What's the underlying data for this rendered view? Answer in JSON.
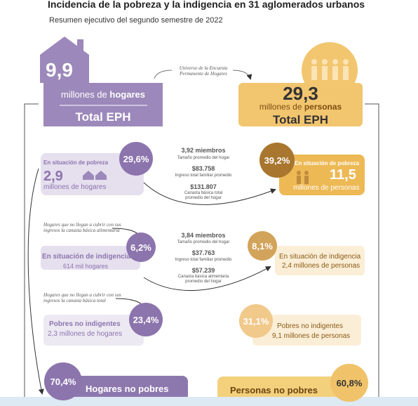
{
  "header": {
    "title": "Incidencia de la pobreza y la indigencia en 31 aglomerados urbanos",
    "subtitle": "Resumen ejecutivo del segundo semestre de 2022"
  },
  "universe_note": "Universo de la Encuesta Permanente de Hogares",
  "households_total": {
    "value": "9,9",
    "unit_prefix": "millones de",
    "unit_bold": "hogares",
    "label": "Total EPH"
  },
  "persons_total": {
    "value": "29,3",
    "unit_prefix": "millones de",
    "unit_bold": "personas",
    "label": "Total EPH"
  },
  "poverty": {
    "households": {
      "percent": "29,6%",
      "label": "En situación de pobreza",
      "value": "2,9",
      "unit": "millones de hogares"
    },
    "middle": {
      "members": "3,92 miembros",
      "members_note": "Tamaño promedio del hogar",
      "income": "$83.758",
      "income_note": "Ingreso total familiar promedio",
      "basket": "$131.807",
      "basket_note": "Canasta básica total promedio del hogar"
    },
    "persons": {
      "percent": "39,2%",
      "label": "En situación de pobreza",
      "value": "11,5",
      "unit": "millones de personas"
    }
  },
  "note_food_basket": "Hogares que no llegan a cubrir con sus ingresos la canasta básica alimentaria",
  "indigence": {
    "households": {
      "percent": "6,2%",
      "label": "En situación de indigencia",
      "value": "614 mil hogares"
    },
    "middle": {
      "members": "3,84 miembros",
      "members_note": "Tamaño promedio del hogar",
      "income": "$37.763",
      "income_note": "Ingreso total familiar promedio",
      "basket": "$57.239",
      "basket_note": "Canasta básica alimentaria promedio del hogar"
    },
    "persons": {
      "percent": "8,1%",
      "label": "En situación de indigencia",
      "value": "2,4 millones de personas"
    }
  },
  "note_total_basket": "Hogares que no llegan a cubrir con sus ingresos la canasta básica total",
  "non_indigent": {
    "households": {
      "percent": "23,4%",
      "label": "Pobres no indigentes",
      "value": "2,3 millones de hogares"
    },
    "persons": {
      "percent": "31,1%",
      "label": "Pobres no indigentes",
      "value": "9,1 millones de personas"
    }
  },
  "non_poor": {
    "households": {
      "percent": "70,4%",
      "label": "Hogares no pobres"
    },
    "persons": {
      "percent": "60,8%",
      "label": "Personas no pobres"
    }
  }
}
